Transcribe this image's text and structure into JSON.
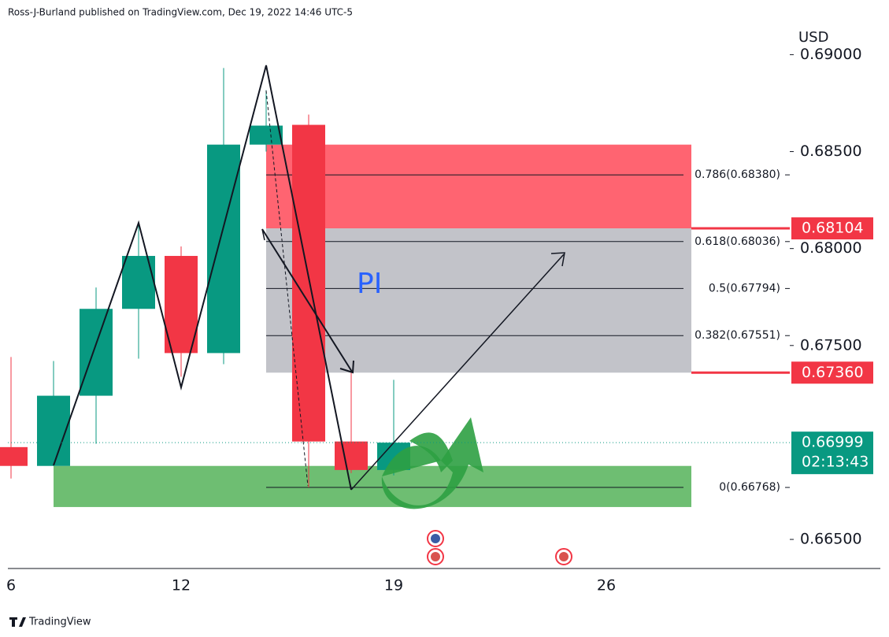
{
  "chart_data": {
    "type": "candlestick",
    "title": "Ross-J-Burland published on TradingView.com, Dec 19, 2022 14:46 UTC-5",
    "y_label": "USD",
    "footer": "TradingView",
    "annotation": "PI",
    "categories": [
      "6",
      null,
      null,
      null,
      "12",
      null,
      null,
      null,
      null,
      "19",
      null,
      null,
      null,
      null,
      "26"
    ],
    "series": [
      {
        "name": "open",
        "values": [
          0.66976,
          0.66879,
          0.67241,
          0.67689,
          0.67962,
          0.67461,
          0.68536,
          0.68638,
          0.67005,
          0.66858,
          null,
          null,
          null,
          null,
          null
        ]
      },
      {
        "name": "high",
        "values": [
          0.67441,
          0.6742,
          0.67799,
          0.68125,
          0.68011,
          0.68931,
          0.68817,
          0.68691,
          0.6736,
          0.67323,
          null,
          null,
          null,
          null,
          null
        ]
      },
      {
        "name": "low",
        "values": [
          0.66814,
          0.66879,
          0.66993,
          0.67432,
          0.67339,
          0.67404,
          0.685,
          0.66769,
          0.66842,
          0.6683,
          null,
          null,
          null,
          null,
          null
        ]
      },
      {
        "name": "close",
        "values": [
          0.66879,
          0.67241,
          0.67689,
          0.67962,
          0.67461,
          0.68536,
          0.68634,
          0.67005,
          0.66858,
          0.66999,
          null,
          null,
          null,
          null,
          null
        ]
      }
    ],
    "up_color": "#089981",
    "down_color": "#f23645",
    "ylim": [
      0.6635,
      0.6916
    ],
    "yticks": [
      {
        "value": 0.665,
        "label": "0.66500"
      },
      {
        "value": 0.675,
        "label": "0.67500"
      },
      {
        "value": 0.68,
        "label": "0.68000"
      },
      {
        "value": 0.685,
        "label": "0.68500"
      },
      {
        "value": 0.69,
        "label": "0.69000"
      }
    ],
    "zones": [
      {
        "top": 0.68536,
        "bottom": 0.68104,
        "color": "#ff5c69"
      },
      {
        "top": 0.68104,
        "bottom": 0.6736,
        "color": "#bfc0c6"
      },
      {
        "top": 0.66879,
        "bottom": 0.66667,
        "color": "#66bb6a"
      }
    ],
    "fib_levels": [
      {
        "value": 0.6838,
        "label": "0.786(0.68380)"
      },
      {
        "value": 0.68036,
        "label": "0.618(0.68036)"
      },
      {
        "value": 0.67794,
        "label": "0.5(0.67794)"
      },
      {
        "value": 0.67551,
        "label": "0.382(0.67551)"
      },
      {
        "value": 0.66768,
        "label": "0(0.66768)"
      }
    ],
    "price_labels": [
      {
        "value": 0.68104,
        "label": "0.68104",
        "color": "#f23645"
      },
      {
        "value": 0.6736,
        "label": "0.67360",
        "color": "#f23645"
      },
      {
        "value": 0.66999,
        "label": "0.66999",
        "color": "#089981",
        "countdown": "02:13:43"
      }
    ]
  }
}
